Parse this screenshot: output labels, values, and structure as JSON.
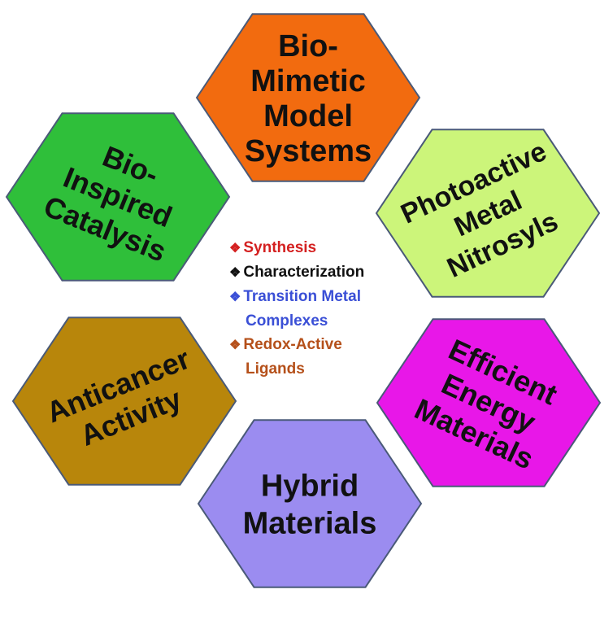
{
  "hexagons": [
    {
      "id": "top",
      "color": "#f26b0f",
      "lines": [
        "Bio-",
        "Mimetic",
        "Model",
        "Systems"
      ]
    },
    {
      "id": "upper-left",
      "color": "#2fbf3a",
      "lines": [
        "Bio-",
        "Inspired",
        "Catalysis"
      ]
    },
    {
      "id": "upper-right",
      "color": "#ccf57a",
      "lines": [
        "Photoactive",
        "Metal",
        "Nitrosyls"
      ]
    },
    {
      "id": "lower-left",
      "color": "#b8860b",
      "lines": [
        "Anticancer",
        "Activity"
      ]
    },
    {
      "id": "lower-right",
      "color": "#e817e8",
      "lines": [
        "Efficient",
        "Energy",
        "Materials"
      ]
    },
    {
      "id": "bottom",
      "color": "#9b8cf0",
      "lines": [
        "Hybrid",
        "Materials"
      ]
    }
  ],
  "center": {
    "bullet_symbol": "❖",
    "items": [
      {
        "lines": [
          "Synthesis"
        ],
        "color": "#d42020"
      },
      {
        "lines": [
          "Characterization"
        ],
        "color": "#111111"
      },
      {
        "lines": [
          "Transition Metal",
          "Complexes"
        ],
        "color": "#3a4fd6"
      },
      {
        "lines": [
          "Redox-Active",
          "Ligands"
        ],
        "color": "#b5501a"
      }
    ]
  }
}
